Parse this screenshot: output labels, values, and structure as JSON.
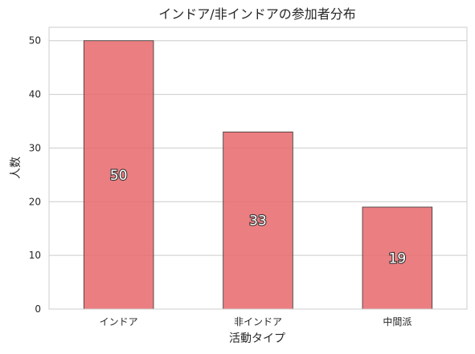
{
  "chart_data": {
    "type": "bar",
    "title": "インドア/非インドアの参加者分布",
    "xlabel": "活動タイプ",
    "ylabel": "人数",
    "categories": [
      "インドア",
      "非インドア",
      "中間派"
    ],
    "values": [
      50,
      33,
      19
    ],
    "data_labels": [
      "50",
      "33",
      "19"
    ],
    "yticks": [
      0,
      10,
      20,
      30,
      40,
      50
    ],
    "ylim": [
      0,
      52.5
    ],
    "grid": true,
    "bar_color": "#e8676b",
    "bar_edge_color": "#333333"
  }
}
